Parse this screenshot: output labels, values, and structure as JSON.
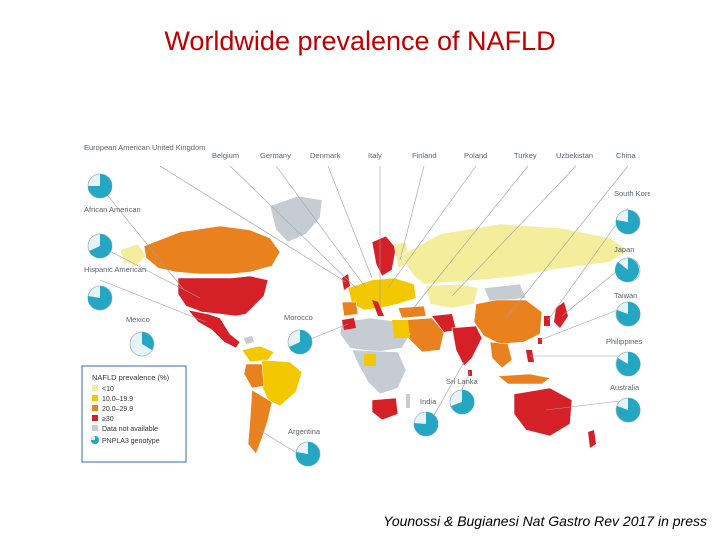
{
  "title": "Worldwide prevalence of NAFLD",
  "citation": "Younossi & Bugianesi Nat Gastro Rev 2017 in press",
  "top_labels": [
    "European American",
    "United Kingdom",
    "Belgium",
    "Germany",
    "Denmark",
    "Italy",
    "Finland",
    "Poland",
    "Turkey",
    "Uzbekistan",
    "China"
  ],
  "left_labels": [
    "African American",
    "Hispanic American",
    "Mexico"
  ],
  "right_labels": [
    "South Korea",
    "Japan",
    "Taiwan",
    "Philippines",
    "Australia"
  ],
  "inner_labels": [
    "Morocco",
    "Sri Lanka",
    "India",
    "Argentina"
  ],
  "legend": {
    "title": "NAFLD prevalence (%)",
    "items": [
      {
        "label": "<10",
        "color": "#f4ee9c"
      },
      {
        "label": "10.0–19.9",
        "color": "#f3c800"
      },
      {
        "label": "20.0–29.9",
        "color": "#e9821e"
      },
      {
        "label": "≥30",
        "color": "#d62027"
      },
      {
        "label": "Data not available",
        "color": "#c5ccd3"
      }
    ],
    "genotype_label": "PNPLA3 genotype"
  },
  "colors": {
    "low": "#f4ee9c",
    "mid": "#f3c800",
    "high": "#e9821e",
    "very_high": "#d62027",
    "na": "#c5ccd3",
    "pie_fill": "#25a7c4",
    "pie_bg": "#e6f3f8",
    "title": "#c00000"
  }
}
